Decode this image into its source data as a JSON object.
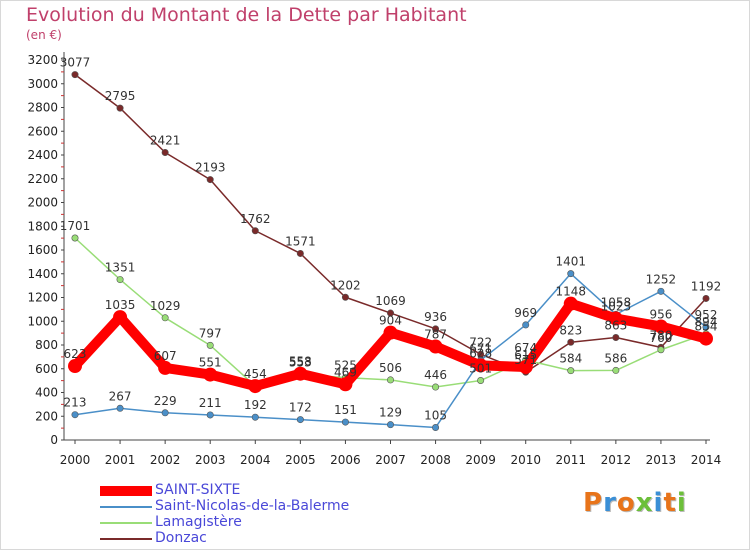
{
  "header": {
    "title": "Evolution du Montant de la Dette par Habitant",
    "subtitle": "(en €)"
  },
  "logo": {
    "text": "Proxiti",
    "colors": [
      "#e8741a",
      "#3a8fd6",
      "#e8741a",
      "#6cbf3a",
      "#3a8fd6",
      "#e8741a",
      "#6cbf3a"
    ]
  },
  "chart_data": {
    "type": "line",
    "x": [
      "2000",
      "2001",
      "2002",
      "2003",
      "2004",
      "2005",
      "2006",
      "2007",
      "2008",
      "2009",
      "2010",
      "2011",
      "2012",
      "2013",
      "2014"
    ],
    "ylim": [
      0,
      3200
    ],
    "yticks": [
      0,
      200,
      400,
      600,
      800,
      1000,
      1200,
      1400,
      1600,
      1800,
      2000,
      2200,
      2400,
      2600,
      2800,
      3000,
      3200
    ],
    "grid": false,
    "legend_position": "bottom-left",
    "series": [
      {
        "name": "SAINT-SIXTE",
        "color": "#ff0000",
        "values": [
          623,
          1035,
          607,
          551,
          454,
          558,
          469,
          904,
          787,
          628,
          615,
          1148,
          1023,
          956,
          854
        ],
        "labels": [
          "623",
          "1035",
          "607",
          "551",
          "454",
          "558",
          "469",
          "904",
          "787",
          "628",
          "615",
          "1148",
          "1023",
          "956",
          "854"
        ]
      },
      {
        "name": "Saint-Nicolas-de-la-Balerme",
        "color": "#4a8fc8",
        "values": [
          213,
          267,
          229,
          211,
          192,
          172,
          151,
          129,
          105,
          671,
          969,
          1401,
          1058,
          1252,
          952
        ],
        "labels": [
          "213",
          "267",
          "229",
          "211",
          "192",
          "172",
          "151",
          "129",
          "105",
          "671",
          "969",
          "1401",
          "1058",
          "1252",
          "952"
        ]
      },
      {
        "name": "Lamagistère",
        "color": "#99dd77",
        "values": [
          1701,
          1351,
          1029,
          797,
          454,
          553,
          525,
          506,
          446,
          501,
          674,
          584,
          586,
          760,
          894
        ],
        "labels": [
          "1701",
          "1351",
          "1029",
          "797",
          "",
          "553",
          "525",
          "506",
          "446",
          "501",
          "674",
          "584",
          "586",
          "760",
          "894"
        ]
      },
      {
        "name": "Donzac",
        "color": "#7a2a2a",
        "values": [
          3077,
          2795,
          2421,
          2193,
          1762,
          1571,
          1202,
          1069,
          936,
          722,
          571,
          823,
          863,
          780,
          1192
        ],
        "labels": [
          "3077",
          "2795",
          "2421",
          "2193",
          "1762",
          "1571",
          "1202",
          "1069",
          "936",
          "722",
          "571",
          "823",
          "863",
          "780",
          "1192"
        ]
      }
    ]
  }
}
